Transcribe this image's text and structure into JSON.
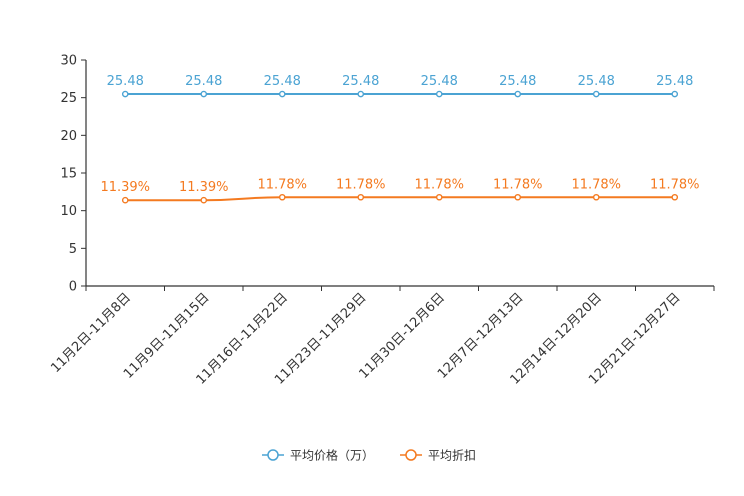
{
  "chart_data": {
    "type": "line",
    "title": "",
    "xlabel": "",
    "ylabel": "",
    "ylim": [
      0,
      30
    ],
    "yticks": [
      0,
      5,
      10,
      15,
      20,
      25,
      30
    ],
    "grid": false,
    "legend_position": "bottom-center",
    "categories": [
      "11月2日-11月8日",
      "11月9日-11月15日",
      "11月16日-11月22日",
      "11月23日-11月29日",
      "11月30日-12月6日",
      "12月7日-12月13日",
      "12月14日-12月20日",
      "12月21日-12月27日"
    ],
    "series": [
      {
        "name": "平均价格（万）",
        "color": "#4ba3d3",
        "values": [
          25.48,
          25.48,
          25.48,
          25.48,
          25.48,
          25.48,
          25.48,
          25.48
        ],
        "labels": [
          "25.48",
          "25.48",
          "25.48",
          "25.48",
          "25.48",
          "25.48",
          "25.48",
          "25.48"
        ]
      },
      {
        "name": "平均折扣",
        "color": "#f47a20",
        "values": [
          11.39,
          11.39,
          11.78,
          11.78,
          11.78,
          11.78,
          11.78,
          11.78
        ],
        "labels": [
          "11.39%",
          "11.39%",
          "11.78%",
          "11.78%",
          "11.78%",
          "11.78%",
          "11.78%",
          "11.78%"
        ]
      }
    ]
  }
}
